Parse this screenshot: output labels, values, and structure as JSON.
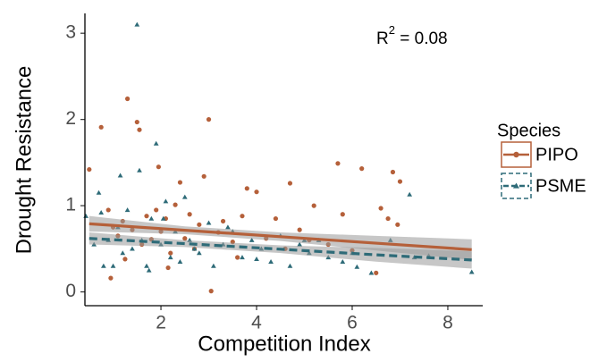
{
  "chart_data": {
    "type": "scatter",
    "xlabel": "Competition Index",
    "ylabel": "Drought Resistance",
    "annotation": {
      "base": "R",
      "sup": "2",
      "text": " = 0.08"
    },
    "legend_title": "Species",
    "legend": "right",
    "xlim": [
      0.41,
      8.73
    ],
    "ylim": [
      -0.16,
      3.23
    ],
    "xticks": [
      2,
      4,
      6,
      8
    ],
    "yticks": [
      0,
      1,
      2,
      3
    ],
    "fit_x": [
      0.5,
      2.5,
      4.5,
      6.5,
      8.5
    ],
    "band_color": "#999999",
    "series": [
      {
        "name": "PIPO",
        "color": "#b5603a",
        "marker": "circle",
        "linetype": "solid",
        "x": [
          0.5,
          0.75,
          0.9,
          1.0,
          1.1,
          1.2,
          1.3,
          1.4,
          1.5,
          1.55,
          1.6,
          1.7,
          1.8,
          1.9,
          1.95,
          2.0,
          2.1,
          2.2,
          2.3,
          2.4,
          2.5,
          2.6,
          2.7,
          2.8,
          2.9,
          3.0,
          3.05,
          3.2,
          3.3,
          3.5,
          3.7,
          3.8,
          4.0,
          4.2,
          4.4,
          4.6,
          4.7,
          4.9,
          5.1,
          5.2,
          5.5,
          5.7,
          5.8,
          6.0,
          6.2,
          6.5,
          6.6,
          6.75,
          6.85,
          6.95,
          7.0,
          0.95,
          1.25,
          2.15,
          3.6
        ],
        "values": [
          1.42,
          1.91,
          0.95,
          0.75,
          0.65,
          0.82,
          2.24,
          0.72,
          1.97,
          1.88,
          0.55,
          0.88,
          0.61,
          0.95,
          1.45,
          0.7,
          0.85,
          0.45,
          1.01,
          1.27,
          0.62,
          0.9,
          0.5,
          0.78,
          1.34,
          2.0,
          0.01,
          0.69,
          0.82,
          0.58,
          0.88,
          1.2,
          1.16,
          0.62,
          0.85,
          0.5,
          1.26,
          0.72,
          0.6,
          1.0,
          0.55,
          1.49,
          0.9,
          0.48,
          1.43,
          0.22,
          0.97,
          0.85,
          1.39,
          0.78,
          1.28,
          0.16,
          0.38,
          0.28,
          0.4
        ],
        "fit": [
          0.79,
          0.715,
          0.64,
          0.565,
          0.49
        ],
        "ci_lower": [
          0.7,
          0.67,
          0.59,
          0.48,
          0.37
        ],
        "ci_upper": [
          0.88,
          0.76,
          0.69,
          0.65,
          0.61
        ]
      },
      {
        "name": "PSME",
        "color": "#2e6b78",
        "marker": "triangle",
        "linetype": "dashed",
        "x": [
          0.43,
          0.6,
          0.7,
          0.8,
          0.9,
          1.0,
          1.1,
          1.2,
          1.3,
          1.4,
          1.5,
          1.55,
          1.6,
          1.7,
          1.8,
          1.9,
          2.0,
          2.1,
          2.2,
          2.3,
          2.4,
          2.5,
          2.6,
          2.8,
          3.0,
          3.1,
          3.3,
          3.5,
          3.7,
          3.9,
          4.1,
          4.3,
          4.5,
          4.7,
          4.9,
          5.1,
          5.3,
          5.5,
          5.8,
          6.1,
          6.4,
          6.8,
          7.2,
          7.3,
          7.6,
          8.5,
          0.75,
          1.15,
          1.75,
          2.05,
          2.7,
          3.4,
          4.0,
          5.0,
          6.0
        ],
        "values": [
          0.88,
          0.55,
          1.15,
          0.3,
          0.6,
          0.3,
          0.75,
          0.45,
          0.95,
          0.5,
          3.1,
          1.41,
          0.6,
          0.3,
          0.85,
          1.72,
          0.55,
          1.05,
          0.4,
          0.7,
          0.35,
          1.1,
          0.6,
          0.45,
          0.8,
          0.3,
          0.55,
          0.7,
          0.4,
          0.6,
          0.5,
          0.35,
          0.65,
          0.3,
          0.55,
          0.45,
          0.6,
          0.4,
          0.35,
          0.29,
          0.22,
          0.6,
          1.13,
          0.4,
          0.42,
          0.23,
          0.92,
          1.35,
          0.25,
          0.85,
          0.5,
          0.75,
          0.38,
          0.6,
          0.45
        ],
        "fit": [
          0.62,
          0.56,
          0.495,
          0.43,
          0.37
        ],
        "ci_lower": [
          0.55,
          0.52,
          0.45,
          0.35,
          0.27
        ],
        "ci_upper": [
          0.69,
          0.6,
          0.54,
          0.51,
          0.47
        ]
      }
    ]
  }
}
